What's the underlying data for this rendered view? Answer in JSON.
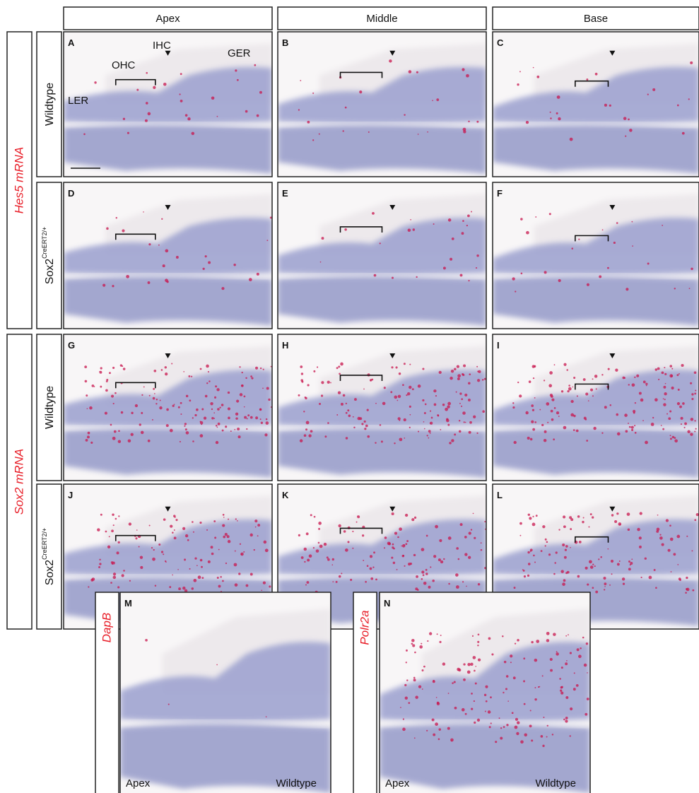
{
  "column_headers": [
    "Apex",
    "Middle",
    "Base"
  ],
  "row_groups": [
    {
      "label": "Hes5 mRNA",
      "rows": [
        {
          "label": "Wildtype"
        },
        {
          "label": "Sox2",
          "superscript": "CreERT2/+"
        }
      ]
    },
    {
      "label": "Sox2 mRNA",
      "rows": [
        {
          "label": "Wildtype"
        },
        {
          "label": "Sox2",
          "superscript": "CreERT2/+"
        }
      ]
    }
  ],
  "panel_letters": [
    "A",
    "B",
    "C",
    "D",
    "E",
    "F",
    "G",
    "H",
    "I",
    "J",
    "K",
    "L"
  ],
  "annotations": {
    "ler": "LER",
    "ohc": "OHC",
    "ihc": "IHC",
    "ger": "GER"
  },
  "controls": [
    {
      "letter": "M",
      "probe": "DapB",
      "region": "Apex",
      "genotype": "Wildtype"
    },
    {
      "letter": "N",
      "probe": "Polr2a",
      "region": "Apex",
      "genotype": "Wildtype"
    }
  ]
}
